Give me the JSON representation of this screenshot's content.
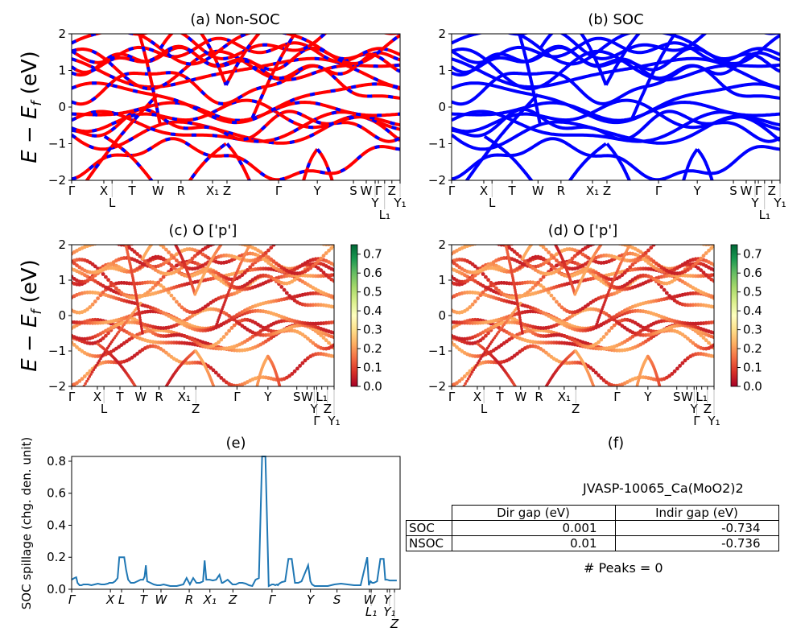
{
  "figure": {
    "panels": {
      "a": {
        "title": "(a) Non-SOC"
      },
      "b": {
        "title": "(b) SOC"
      },
      "c": {
        "title": "(c)  O ['p']"
      },
      "d": {
        "title": "(d) O ['p']"
      },
      "e": {
        "title": "(e)"
      },
      "f": {
        "title": "(f)"
      }
    },
    "ylabel_band": "E − E_f (eV)",
    "ylabel_spillage": "SOC spillage (chg. den. unit)"
  },
  "colors": {
    "nonsoc_line": "#ff0000",
    "nonsoc_dash": "#0000ff",
    "soc_line": "#0000ff",
    "spillage_line": "#1f77b4"
  },
  "chart_data": [
    {
      "type": "line",
      "panel": "a",
      "title": "(a) Non-SOC",
      "ylabel": "E - E_f (eV)",
      "ylim": [
        -2,
        2
      ],
      "yticks": [
        "−2",
        "−1",
        "0",
        "1",
        "2"
      ],
      "xticks": [
        "Γ",
        "X",
        "L",
        "T",
        "W",
        "R",
        "X₁",
        "Z",
        "Γ",
        "Y",
        "S",
        "W",
        "Y",
        "Γ",
        "L₁",
        "Z",
        "Y₁"
      ],
      "xtick_k": [
        0,
        0.098,
        0.123,
        0.184,
        0.263,
        0.333,
        0.429,
        0.473,
        0.63,
        0.748,
        0.858,
        0.897,
        0.924,
        0.934,
        0.953,
        0.975,
        1.0
      ],
      "series_style": "red line with blue dashes (spin up / spin down overlap)"
    },
    {
      "type": "line",
      "panel": "b",
      "title": "(b) SOC",
      "ylim": [
        -2,
        2
      ],
      "yticks": [
        "−2",
        "−1",
        "0",
        "1",
        "2"
      ],
      "xticks": [
        "Γ",
        "X",
        "L",
        "T",
        "W",
        "R",
        "X₁",
        "Z",
        "Γ",
        "Y",
        "S",
        "W",
        "Y",
        "Γ",
        "L₁",
        "Z",
        "Y₁"
      ],
      "series_style": "blue line"
    },
    {
      "type": "scatter",
      "panel": "c",
      "title": "(c)  O ['p']",
      "ylim": [
        -2,
        2
      ],
      "yticks": [
        "−2",
        "−1",
        "0",
        "1",
        "2"
      ],
      "xticks": [
        "Γ",
        "X",
        "L",
        "T",
        "W",
        "R",
        "X₁",
        "Z",
        "Γ",
        "Y",
        "S",
        "W",
        "Y",
        "Γ",
        "L₁",
        "Z",
        "Y₁"
      ],
      "colorbar": {
        "cmap": "RdYlGn",
        "range": [
          0.0,
          0.75
        ],
        "ticks": [
          "0.0",
          "0.1",
          "0.2",
          "0.3",
          "0.4",
          "0.5",
          "0.6",
          "0.7"
        ]
      }
    },
    {
      "type": "scatter",
      "panel": "d",
      "title": "(d) O ['p']",
      "ylim": [
        -2,
        2
      ],
      "yticks": [
        "−2",
        "−1",
        "0",
        "1",
        "2"
      ],
      "xticks": [
        "Γ",
        "X",
        "L",
        "T",
        "W",
        "R",
        "X₁",
        "Z",
        "Γ",
        "Y",
        "S",
        "W",
        "Y",
        "Γ",
        "L₁",
        "Z",
        "Y₁"
      ],
      "colorbar": {
        "cmap": "RdYlGn",
        "range": [
          0.0,
          0.75
        ],
        "ticks": [
          "0.0",
          "0.1",
          "0.2",
          "0.3",
          "0.4",
          "0.5",
          "0.6",
          "0.7"
        ]
      }
    },
    {
      "type": "line",
      "panel": "e",
      "title": "(e)",
      "ylabel": "SOC spillage (chg. den. unit)",
      "ylim": [
        0,
        0.83
      ],
      "yticks": [
        "0.0",
        "0.2",
        "0.4",
        "0.6",
        "0.8"
      ],
      "xticks": [
        "Γ",
        "X",
        "L",
        "T",
        "W",
        "R",
        "X₁",
        "Z",
        "Γ",
        "Y",
        "S",
        "W",
        "L₁",
        "Y",
        "Y₁",
        "Z"
      ],
      "xtick_k": [
        0,
        0.118,
        0.152,
        0.219,
        0.272,
        0.358,
        0.421,
        0.491,
        0.61,
        0.727,
        0.808,
        0.907,
        0.912,
        0.961,
        0.968,
        0.983
      ],
      "x": [
        0,
        0.008,
        0.014,
        0.018,
        0.024,
        0.03,
        0.036,
        0.042,
        0.05,
        0.06,
        0.07,
        0.08,
        0.09,
        0.1,
        0.11,
        0.115,
        0.125,
        0.132,
        0.14,
        0.145,
        0.153,
        0.16,
        0.166,
        0.172,
        0.18,
        0.19,
        0.2,
        0.21,
        0.218,
        0.222,
        0.226,
        0.23,
        0.24,
        0.25,
        0.26,
        0.27,
        0.28,
        0.29,
        0.3,
        0.31,
        0.32,
        0.33,
        0.34,
        0.35,
        0.36,
        0.37,
        0.38,
        0.39,
        0.395,
        0.4,
        0.405,
        0.41,
        0.42,
        0.43,
        0.44,
        0.45,
        0.457,
        0.46,
        0.475,
        0.49,
        0.5,
        0.505,
        0.51,
        0.52,
        0.53,
        0.54,
        0.55,
        0.56,
        0.57,
        0.58,
        0.59,
        0.6,
        0.61,
        0.615,
        0.62,
        0.625,
        0.628,
        0.632,
        0.636,
        0.64,
        0.65,
        0.66,
        0.67,
        0.68,
        0.69,
        0.7,
        0.71,
        0.72,
        0.727,
        0.732,
        0.74,
        0.75,
        0.76,
        0.77,
        0.775,
        0.78,
        0.79,
        0.8,
        0.82,
        0.84,
        0.86,
        0.88,
        0.9,
        0.905,
        0.91,
        0.915,
        0.92,
        0.93,
        0.94,
        0.95,
        0.955,
        0.96,
        0.968,
        0.975,
        0.99
      ],
      "y": [
        0.06,
        0.07,
        0.075,
        0.04,
        0.025,
        0.025,
        0.03,
        0.03,
        0.03,
        0.025,
        0.03,
        0.035,
        0.03,
        0.03,
        0.035,
        0.04,
        0.04,
        0.05,
        0.07,
        0.2,
        0.2,
        0.2,
        0.12,
        0.06,
        0.04,
        0.04,
        0.05,
        0.06,
        0.06,
        0.08,
        0.15,
        0.05,
        0.04,
        0.03,
        0.025,
        0.025,
        0.03,
        0.025,
        0.02,
        0.02,
        0.02,
        0.025,
        0.03,
        0.07,
        0.03,
        0.07,
        0.04,
        0.04,
        0.045,
        0.05,
        0.18,
        0.06,
        0.06,
        0.055,
        0.06,
        0.09,
        0.04,
        0.04,
        0.06,
        0.03,
        0.03,
        0.035,
        0.04,
        0.04,
        0.035,
        0.025,
        0.02,
        0.06,
        0.07,
        0.83,
        0.83,
        0.02,
        0.03,
        0.03,
        0.025,
        0.03,
        0.025,
        0.035,
        0.04,
        0.045,
        0.05,
        0.19,
        0.19,
        0.04,
        0.04,
        0.05,
        0.1,
        0.15,
        0.05,
        0.03,
        0.02,
        0.02,
        0.02,
        0.02,
        0.02,
        0.02,
        0.025,
        0.03,
        0.035,
        0.03,
        0.025,
        0.025,
        0.2,
        0.025,
        0.05,
        0.04,
        0.04,
        0.05,
        0.19,
        0.19,
        0.06,
        0.06,
        0.055,
        0.055,
        0.055
      ]
    }
  ],
  "gap_table": {
    "title": "JVASP-10065_Ca(MoO2)2",
    "columns": [
      "Dir gap (eV)",
      "Indir gap (eV)"
    ],
    "rows": [
      {
        "label": "SOC",
        "dir": "0.001",
        "indir": "-0.734"
      },
      {
        "label": "NSOC",
        "dir": "0.01",
        "indir": "-0.736"
      }
    ],
    "peaks_text": "# Peaks = 0"
  }
}
